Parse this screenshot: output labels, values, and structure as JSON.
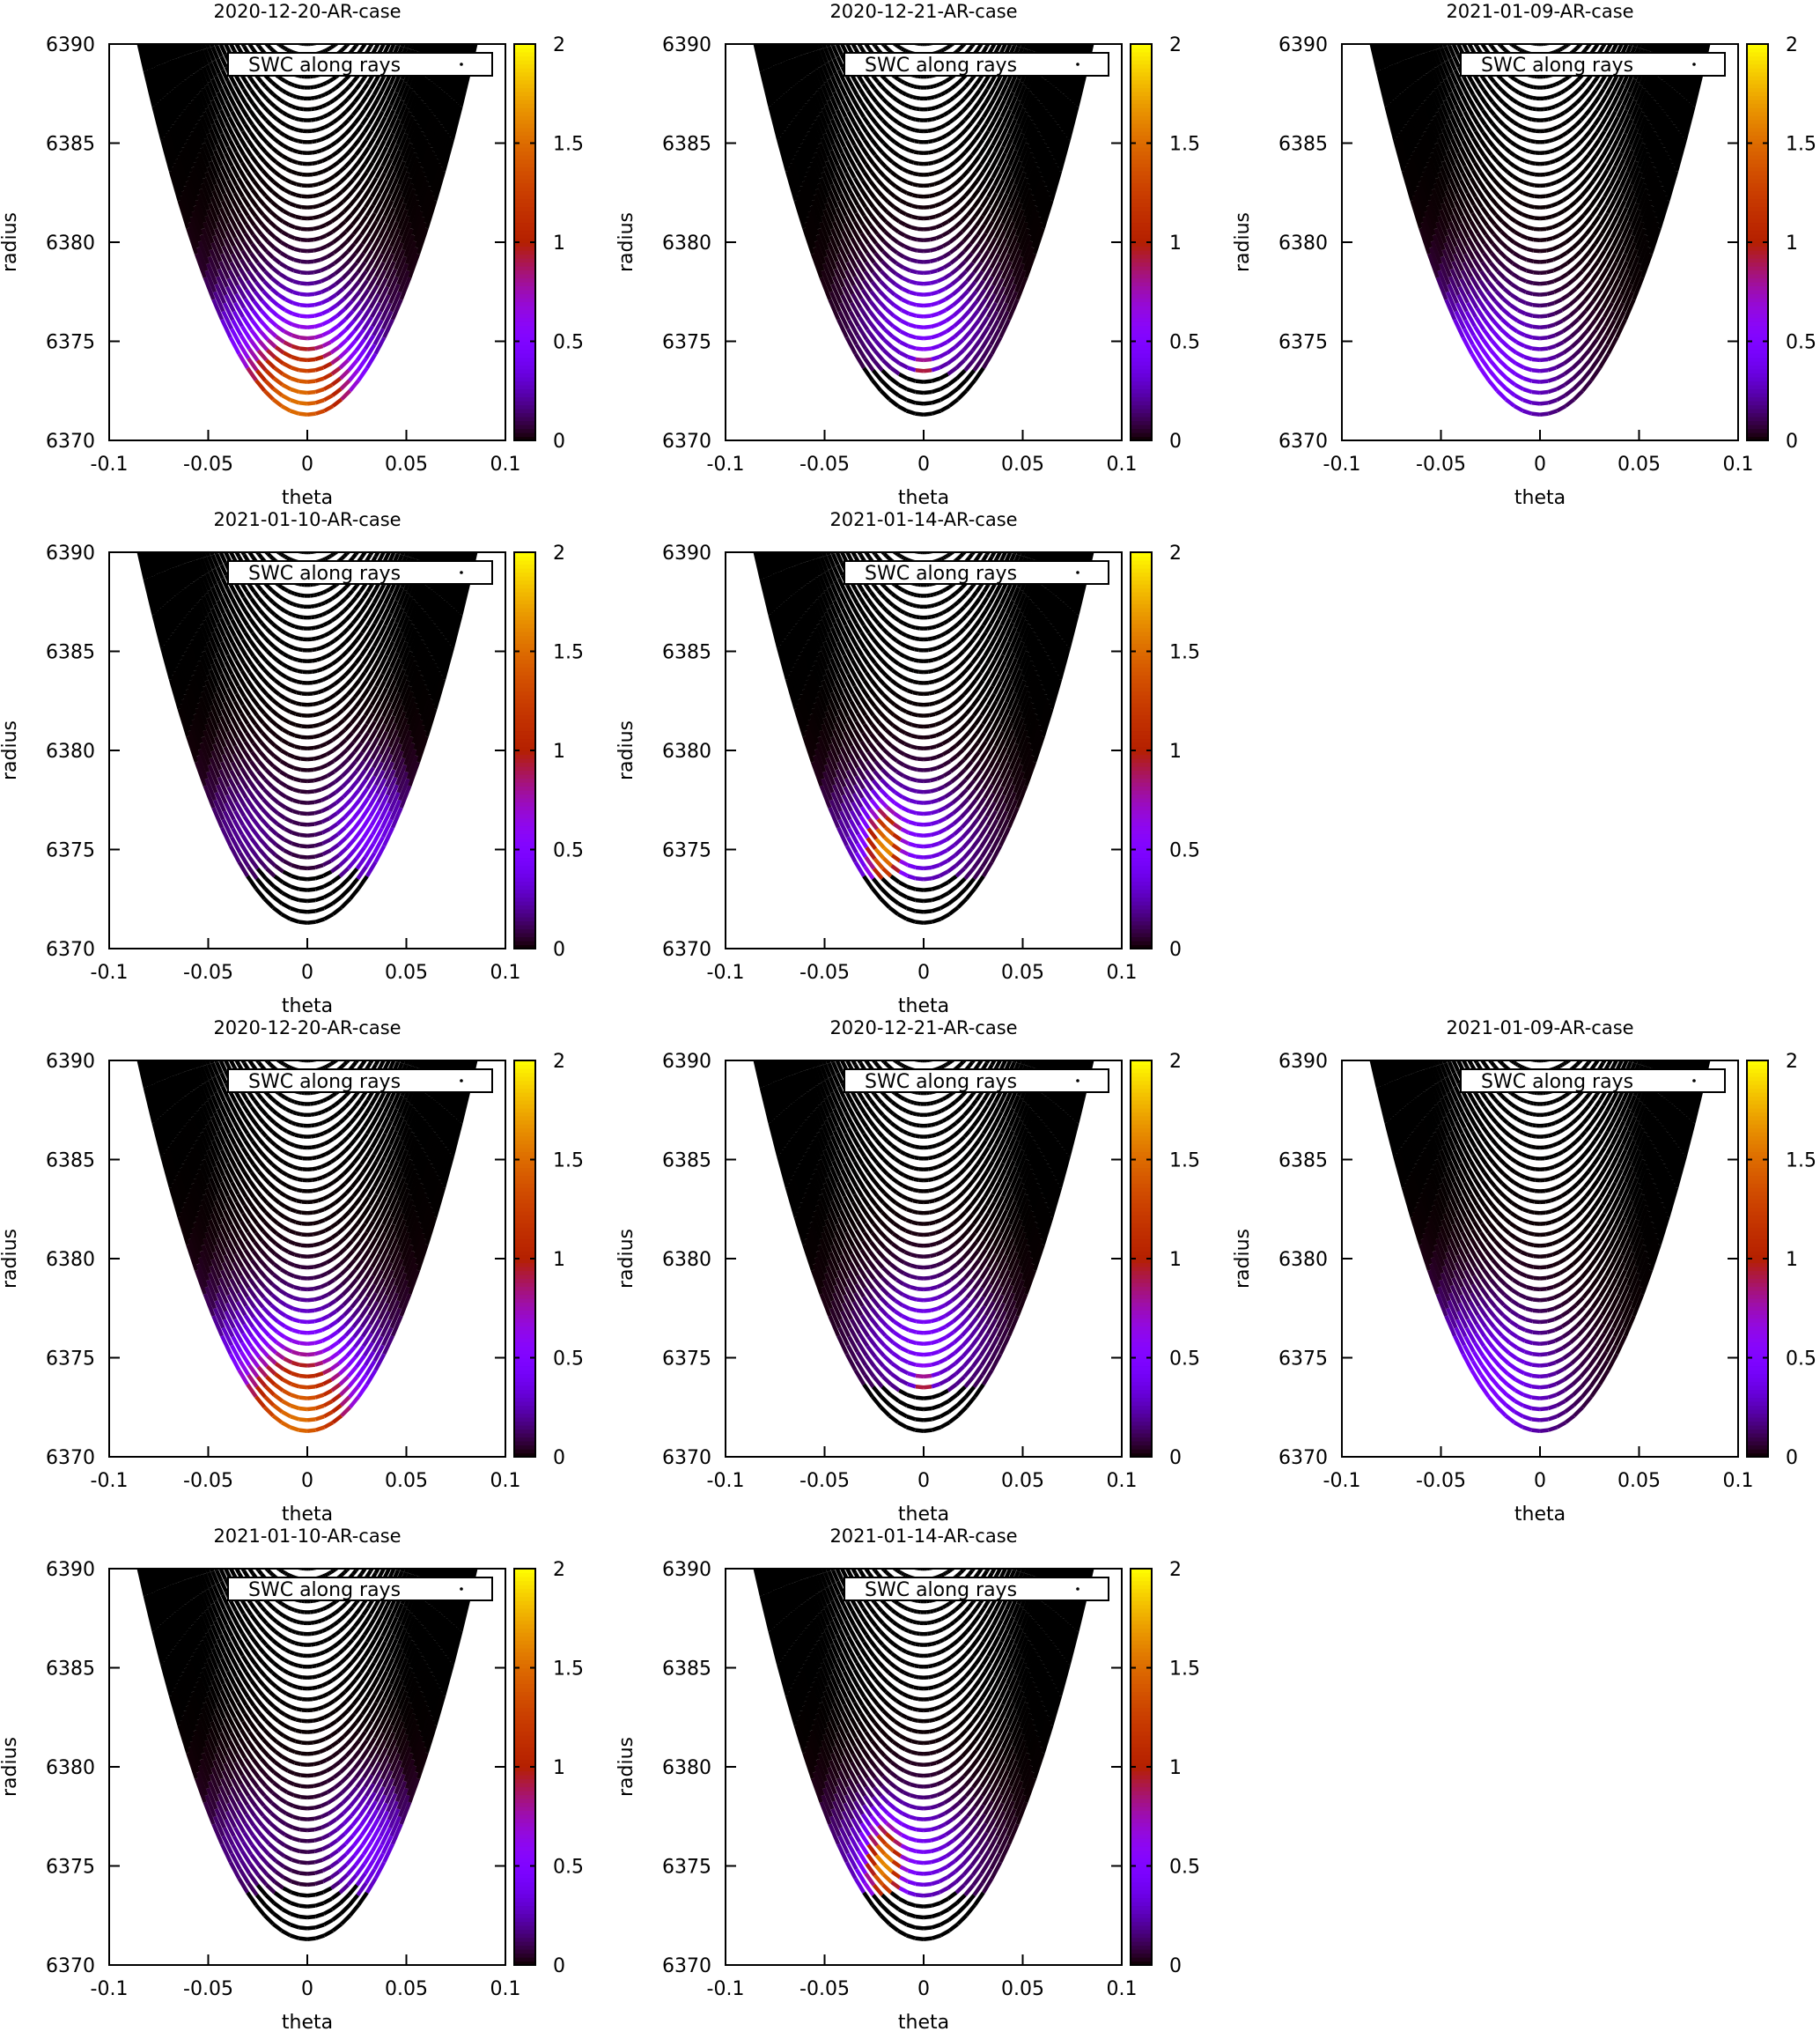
{
  "chart_data": [
    {
      "type": "scatter",
      "title": "2020-12-20-AR-case",
      "xlabel": "theta",
      "ylabel": "radius",
      "legend": "SWC along rays",
      "xlim": [
        -0.1,
        0.1
      ],
      "ylim": [
        6370,
        6390
      ],
      "xticks": [
        "-0.1",
        "-0.05",
        "0",
        "0.05",
        "0.1"
      ],
      "yticks": [
        "6370",
        "6375",
        "6380",
        "6385",
        "6390"
      ],
      "colorbar": {
        "range": [
          0,
          2
        ],
        "ticks": [
          "0",
          "0.5",
          "1",
          "1.5",
          "2"
        ]
      },
      "swc_cutoff_radius": 6371.3,
      "swc_features": [
        {
          "theta": -0.005,
          "radius": 6371.5,
          "value": 1.2,
          "spread_theta": 0.03,
          "spread_radius": 3.5
        },
        {
          "theta": -0.01,
          "radius": 6374,
          "value": 0.45,
          "spread_theta": 0.05,
          "spread_radius": 4
        }
      ]
    },
    {
      "type": "scatter",
      "title": "2020-12-21-AR-case",
      "xlabel": "theta",
      "ylabel": "radius",
      "legend": "SWC along rays",
      "xlim": [
        -0.1,
        0.1
      ],
      "ylim": [
        6370,
        6390
      ],
      "xticks": [
        "-0.1",
        "-0.05",
        "0",
        "0.05",
        "0.1"
      ],
      "yticks": [
        "6370",
        "6375",
        "6380",
        "6385",
        "6390"
      ],
      "colorbar": {
        "range": [
          0,
          2
        ],
        "ticks": [
          "0",
          "0.5",
          "1",
          "1.5",
          "2"
        ]
      },
      "swc_cutoff_radius": 6373.4,
      "swc_features": [
        {
          "theta": 0.0,
          "radius": 6376,
          "value": 0.45,
          "spread_theta": 0.03,
          "spread_radius": 3
        },
        {
          "theta": 0.0,
          "radius": 6373.5,
          "value": 0.9,
          "spread_theta": 0.004,
          "spread_radius": 1
        }
      ]
    },
    {
      "type": "scatter",
      "title": "2021-01-09-AR-case",
      "xlabel": "theta",
      "ylabel": "radius",
      "legend": "SWC along rays",
      "xlim": [
        -0.1,
        0.1
      ],
      "ylim": [
        6370,
        6390
      ],
      "xticks": [
        "-0.1",
        "-0.05",
        "0",
        "0.05",
        "0.1"
      ],
      "yticks": [
        "6370",
        "6375",
        "6380",
        "6385",
        "6390"
      ],
      "colorbar": {
        "range": [
          0,
          2
        ],
        "ticks": [
          "0",
          "0.5",
          "1",
          "1.5",
          "2"
        ]
      },
      "swc_cutoff_radius": 6371.3,
      "swc_features": [
        {
          "theta": -0.03,
          "radius": 6373.5,
          "value": 0.5,
          "spread_theta": 0.04,
          "spread_radius": 4
        }
      ]
    },
    {
      "type": "scatter",
      "title": "2021-01-10-AR-case",
      "xlabel": "theta",
      "ylabel": "radius",
      "legend": "SWC along rays",
      "xlim": [
        -0.1,
        0.1
      ],
      "ylim": [
        6370,
        6390
      ],
      "xticks": [
        "-0.1",
        "-0.05",
        "0",
        "0.05",
        "0.1"
      ],
      "yticks": [
        "6370",
        "6375",
        "6380",
        "6385",
        "6390"
      ],
      "colorbar": {
        "range": [
          0,
          2
        ],
        "ticks": [
          "0",
          "0.5",
          "1",
          "1.5",
          "2"
        ]
      },
      "swc_cutoff_radius": 6373.8,
      "swc_features": [
        {
          "theta": 0.03,
          "radius": 6376,
          "value": 0.45,
          "spread_theta": 0.02,
          "spread_radius": 3
        },
        {
          "theta": -0.03,
          "radius": 6376,
          "value": 0.2,
          "spread_theta": 0.025,
          "spread_radius": 3
        }
      ]
    },
    {
      "type": "scatter",
      "title": "2021-01-14-AR-case",
      "xlabel": "theta",
      "ylabel": "radius",
      "legend": "SWC along rays",
      "xlim": [
        -0.1,
        0.1
      ],
      "ylim": [
        6370,
        6390
      ],
      "xticks": [
        "-0.1",
        "-0.05",
        "0",
        "0.05",
        "0.1"
      ],
      "yticks": [
        "6370",
        "6375",
        "6380",
        "6385",
        "6390"
      ],
      "colorbar": {
        "range": [
          0,
          2
        ],
        "ticks": [
          "0",
          "0.5",
          "1",
          "1.5",
          "2"
        ]
      },
      "swc_cutoff_radius": 6373.5,
      "swc_features": [
        {
          "theta": -0.02,
          "radius": 6375,
          "value": 1.3,
          "spread_theta": 0.008,
          "spread_radius": 2
        },
        {
          "theta": -0.01,
          "radius": 6375.5,
          "value": 0.45,
          "spread_theta": 0.035,
          "spread_radius": 3
        }
      ]
    },
    {
      "type": "scatter",
      "title": "2020-12-20-AR-case",
      "xlabel": "theta",
      "ylabel": "radius",
      "legend": "SWC along rays",
      "xlim": [
        -0.1,
        0.1
      ],
      "ylim": [
        6370,
        6390
      ],
      "xticks": [
        "-0.1",
        "-0.05",
        "0",
        "0.05",
        "0.1"
      ],
      "yticks": [
        "6370",
        "6375",
        "6380",
        "6385",
        "6390"
      ],
      "colorbar": {
        "range": [
          0,
          2
        ],
        "ticks": [
          "0",
          "0.5",
          "1",
          "1.5",
          "2"
        ]
      },
      "swc_cutoff_radius": 6371.3,
      "swc_features": [
        {
          "theta": -0.005,
          "radius": 6371.5,
          "value": 1.2,
          "spread_theta": 0.03,
          "spread_radius": 3.5
        },
        {
          "theta": -0.01,
          "radius": 6374,
          "value": 0.45,
          "spread_theta": 0.05,
          "spread_radius": 4
        }
      ]
    },
    {
      "type": "scatter",
      "title": "2020-12-21-AR-case",
      "xlabel": "theta",
      "ylabel": "radius",
      "legend": "SWC along rays",
      "xlim": [
        -0.1,
        0.1
      ],
      "ylim": [
        6370,
        6390
      ],
      "xticks": [
        "-0.1",
        "-0.05",
        "0",
        "0.05",
        "0.1"
      ],
      "yticks": [
        "6370",
        "6375",
        "6380",
        "6385",
        "6390"
      ],
      "colorbar": {
        "range": [
          0,
          2
        ],
        "ticks": [
          "0",
          "0.5",
          "1",
          "1.5",
          "2"
        ]
      },
      "swc_cutoff_radius": 6373.4,
      "swc_features": [
        {
          "theta": 0.0,
          "radius": 6376,
          "value": 0.45,
          "spread_theta": 0.03,
          "spread_radius": 3
        },
        {
          "theta": 0.0,
          "radius": 6373.5,
          "value": 0.9,
          "spread_theta": 0.004,
          "spread_radius": 1
        }
      ]
    },
    {
      "type": "scatter",
      "title": "2021-01-09-AR-case",
      "xlabel": "theta",
      "ylabel": "radius",
      "legend": "SWC along rays",
      "xlim": [
        -0.1,
        0.1
      ],
      "ylim": [
        6370,
        6390
      ],
      "xticks": [
        "-0.1",
        "-0.05",
        "0",
        "0.05",
        "0.1"
      ],
      "yticks": [
        "6370",
        "6375",
        "6380",
        "6385",
        "6390"
      ],
      "colorbar": {
        "range": [
          0,
          2
        ],
        "ticks": [
          "0",
          "0.5",
          "1",
          "1.5",
          "2"
        ]
      },
      "swc_cutoff_radius": 6371.3,
      "swc_features": [
        {
          "theta": -0.03,
          "radius": 6373.5,
          "value": 0.5,
          "spread_theta": 0.04,
          "spread_radius": 4
        }
      ]
    },
    {
      "type": "scatter",
      "title": "2021-01-10-AR-case",
      "xlabel": "theta",
      "ylabel": "radius",
      "legend": "SWC along rays",
      "xlim": [
        -0.1,
        0.1
      ],
      "ylim": [
        6370,
        6390
      ],
      "xticks": [
        "-0.1",
        "-0.05",
        "0",
        "0.05",
        "0.1"
      ],
      "yticks": [
        "6370",
        "6375",
        "6380",
        "6385",
        "6390"
      ],
      "colorbar": {
        "range": [
          0,
          2
        ],
        "ticks": [
          "0",
          "0.5",
          "1",
          "1.5",
          "2"
        ]
      },
      "swc_cutoff_radius": 6373.8,
      "swc_features": [
        {
          "theta": 0.03,
          "radius": 6376,
          "value": 0.45,
          "spread_theta": 0.02,
          "spread_radius": 3
        },
        {
          "theta": -0.03,
          "radius": 6376,
          "value": 0.2,
          "spread_theta": 0.025,
          "spread_radius": 3
        }
      ]
    },
    {
      "type": "scatter",
      "title": "2021-01-14-AR-case",
      "xlabel": "theta",
      "ylabel": "radius",
      "legend": "SWC along rays",
      "xlim": [
        -0.1,
        0.1
      ],
      "ylim": [
        6370,
        6390
      ],
      "xticks": [
        "-0.1",
        "-0.05",
        "0",
        "0.05",
        "0.1"
      ],
      "yticks": [
        "6370",
        "6375",
        "6380",
        "6385",
        "6390"
      ],
      "colorbar": {
        "range": [
          0,
          2
        ],
        "ticks": [
          "0",
          "0.5",
          "1",
          "1.5",
          "2"
        ]
      },
      "swc_cutoff_radius": 6373.5,
      "swc_features": [
        {
          "theta": -0.02,
          "radius": 6375,
          "value": 1.3,
          "spread_theta": 0.008,
          "spread_radius": 2
        },
        {
          "theta": -0.01,
          "radius": 6375.5,
          "value": 0.45,
          "spread_theta": 0.035,
          "spread_radius": 3
        }
      ]
    }
  ]
}
